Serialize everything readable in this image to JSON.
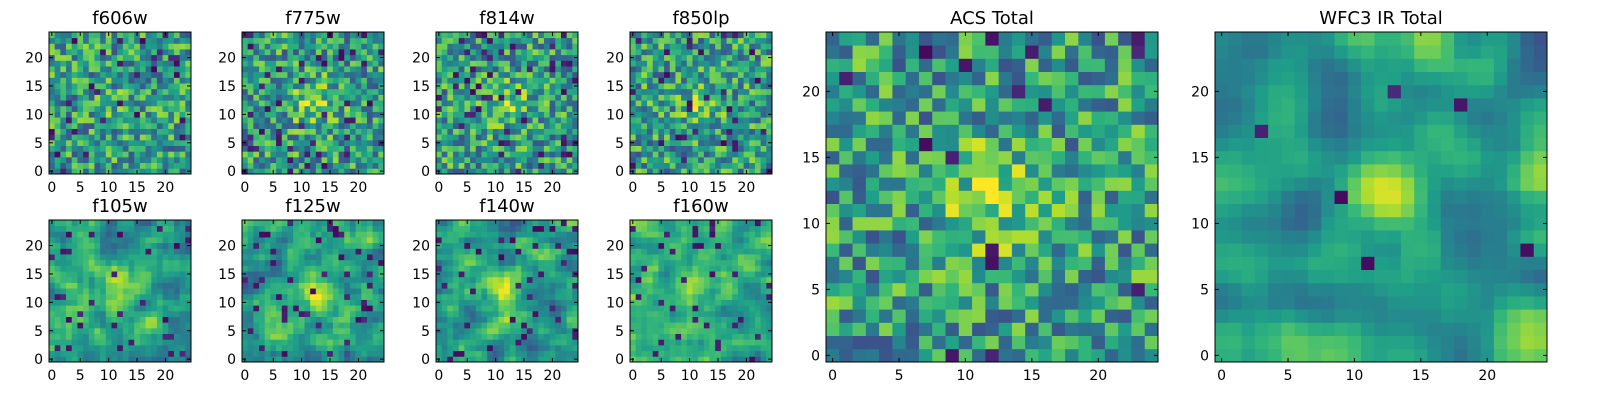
{
  "chart_data": {
    "type": "heatmap",
    "colormap": "viridis",
    "panels": [
      {
        "id": "f606w",
        "title": "f606w",
        "grid": [
          25,
          25
        ],
        "xticks": [
          "0",
          "5",
          "10",
          "15",
          "20"
        ],
        "yticks": [
          "0",
          "5",
          "10",
          "15",
          "20"
        ],
        "seed": 11,
        "smooth": 0,
        "blob": 0.15,
        "dark": 0.05
      },
      {
        "id": "f775w",
        "title": "f775w",
        "grid": [
          25,
          25
        ],
        "xticks": [
          "0",
          "5",
          "10",
          "15",
          "20"
        ],
        "yticks": [
          "0",
          "5",
          "10",
          "15",
          "20"
        ],
        "seed": 23,
        "smooth": 0,
        "blob": 0.55,
        "dark": 0.06
      },
      {
        "id": "f814w",
        "title": "f814w",
        "grid": [
          25,
          25
        ],
        "xticks": [
          "0",
          "5",
          "10",
          "15",
          "20"
        ],
        "yticks": [
          "0",
          "5",
          "10",
          "15",
          "20"
        ],
        "seed": 37,
        "smooth": 0,
        "blob": 0.45,
        "dark": 0.08
      },
      {
        "id": "f850lp",
        "title": "f850lp",
        "grid": [
          25,
          25
        ],
        "xticks": [
          "0",
          "5",
          "10",
          "15",
          "20"
        ],
        "yticks": [
          "0",
          "5",
          "10",
          "15",
          "20"
        ],
        "seed": 41,
        "smooth": 0,
        "blob": 0.4,
        "dark": 0.06
      },
      {
        "id": "f105w",
        "title": "f105w",
        "grid": [
          25,
          25
        ],
        "xticks": [
          "0",
          "5",
          "10",
          "15",
          "20"
        ],
        "yticks": [
          "0",
          "5",
          "10",
          "15",
          "20"
        ],
        "seed": 53,
        "smooth": 1,
        "blob": 0.5,
        "dark": 0.07
      },
      {
        "id": "f125w",
        "title": "f125w",
        "grid": [
          25,
          25
        ],
        "xticks": [
          "0",
          "5",
          "10",
          "15",
          "20"
        ],
        "yticks": [
          "0",
          "5",
          "10",
          "15",
          "20"
        ],
        "seed": 67,
        "smooth": 1,
        "blob": 0.55,
        "dark": 0.05
      },
      {
        "id": "f140w",
        "title": "f140w",
        "grid": [
          25,
          25
        ],
        "xticks": [
          "0",
          "5",
          "10",
          "15",
          "20"
        ],
        "yticks": [
          "0",
          "5",
          "10",
          "15",
          "20"
        ],
        "seed": 71,
        "smooth": 1,
        "blob": 0.6,
        "dark": 0.07
      },
      {
        "id": "f160w",
        "title": "f160w",
        "grid": [
          25,
          25
        ],
        "xticks": [
          "0",
          "5",
          "10",
          "15",
          "20"
        ],
        "yticks": [
          "0",
          "5",
          "10",
          "15",
          "20"
        ],
        "seed": 83,
        "smooth": 1,
        "blob": 0.5,
        "dark": 0.06
      },
      {
        "id": "acs-total",
        "title": "ACS Total",
        "grid": [
          25,
          25
        ],
        "xticks": [
          "0",
          "5",
          "10",
          "15",
          "20"
        ],
        "yticks": [
          "0",
          "5",
          "10",
          "15",
          "20"
        ],
        "seed": 97,
        "smooth": 0,
        "blob": 0.6,
        "dark": 0.03
      },
      {
        "id": "wfc3-ir-total",
        "title": "WFC3 IR Total",
        "grid": [
          25,
          25
        ],
        "xticks": [
          "0",
          "5",
          "10",
          "15",
          "20"
        ],
        "yticks": [
          "0",
          "5",
          "10",
          "15",
          "20"
        ],
        "seed": 103,
        "smooth": 2,
        "blob": 0.75,
        "dark": 0.02
      }
    ]
  }
}
